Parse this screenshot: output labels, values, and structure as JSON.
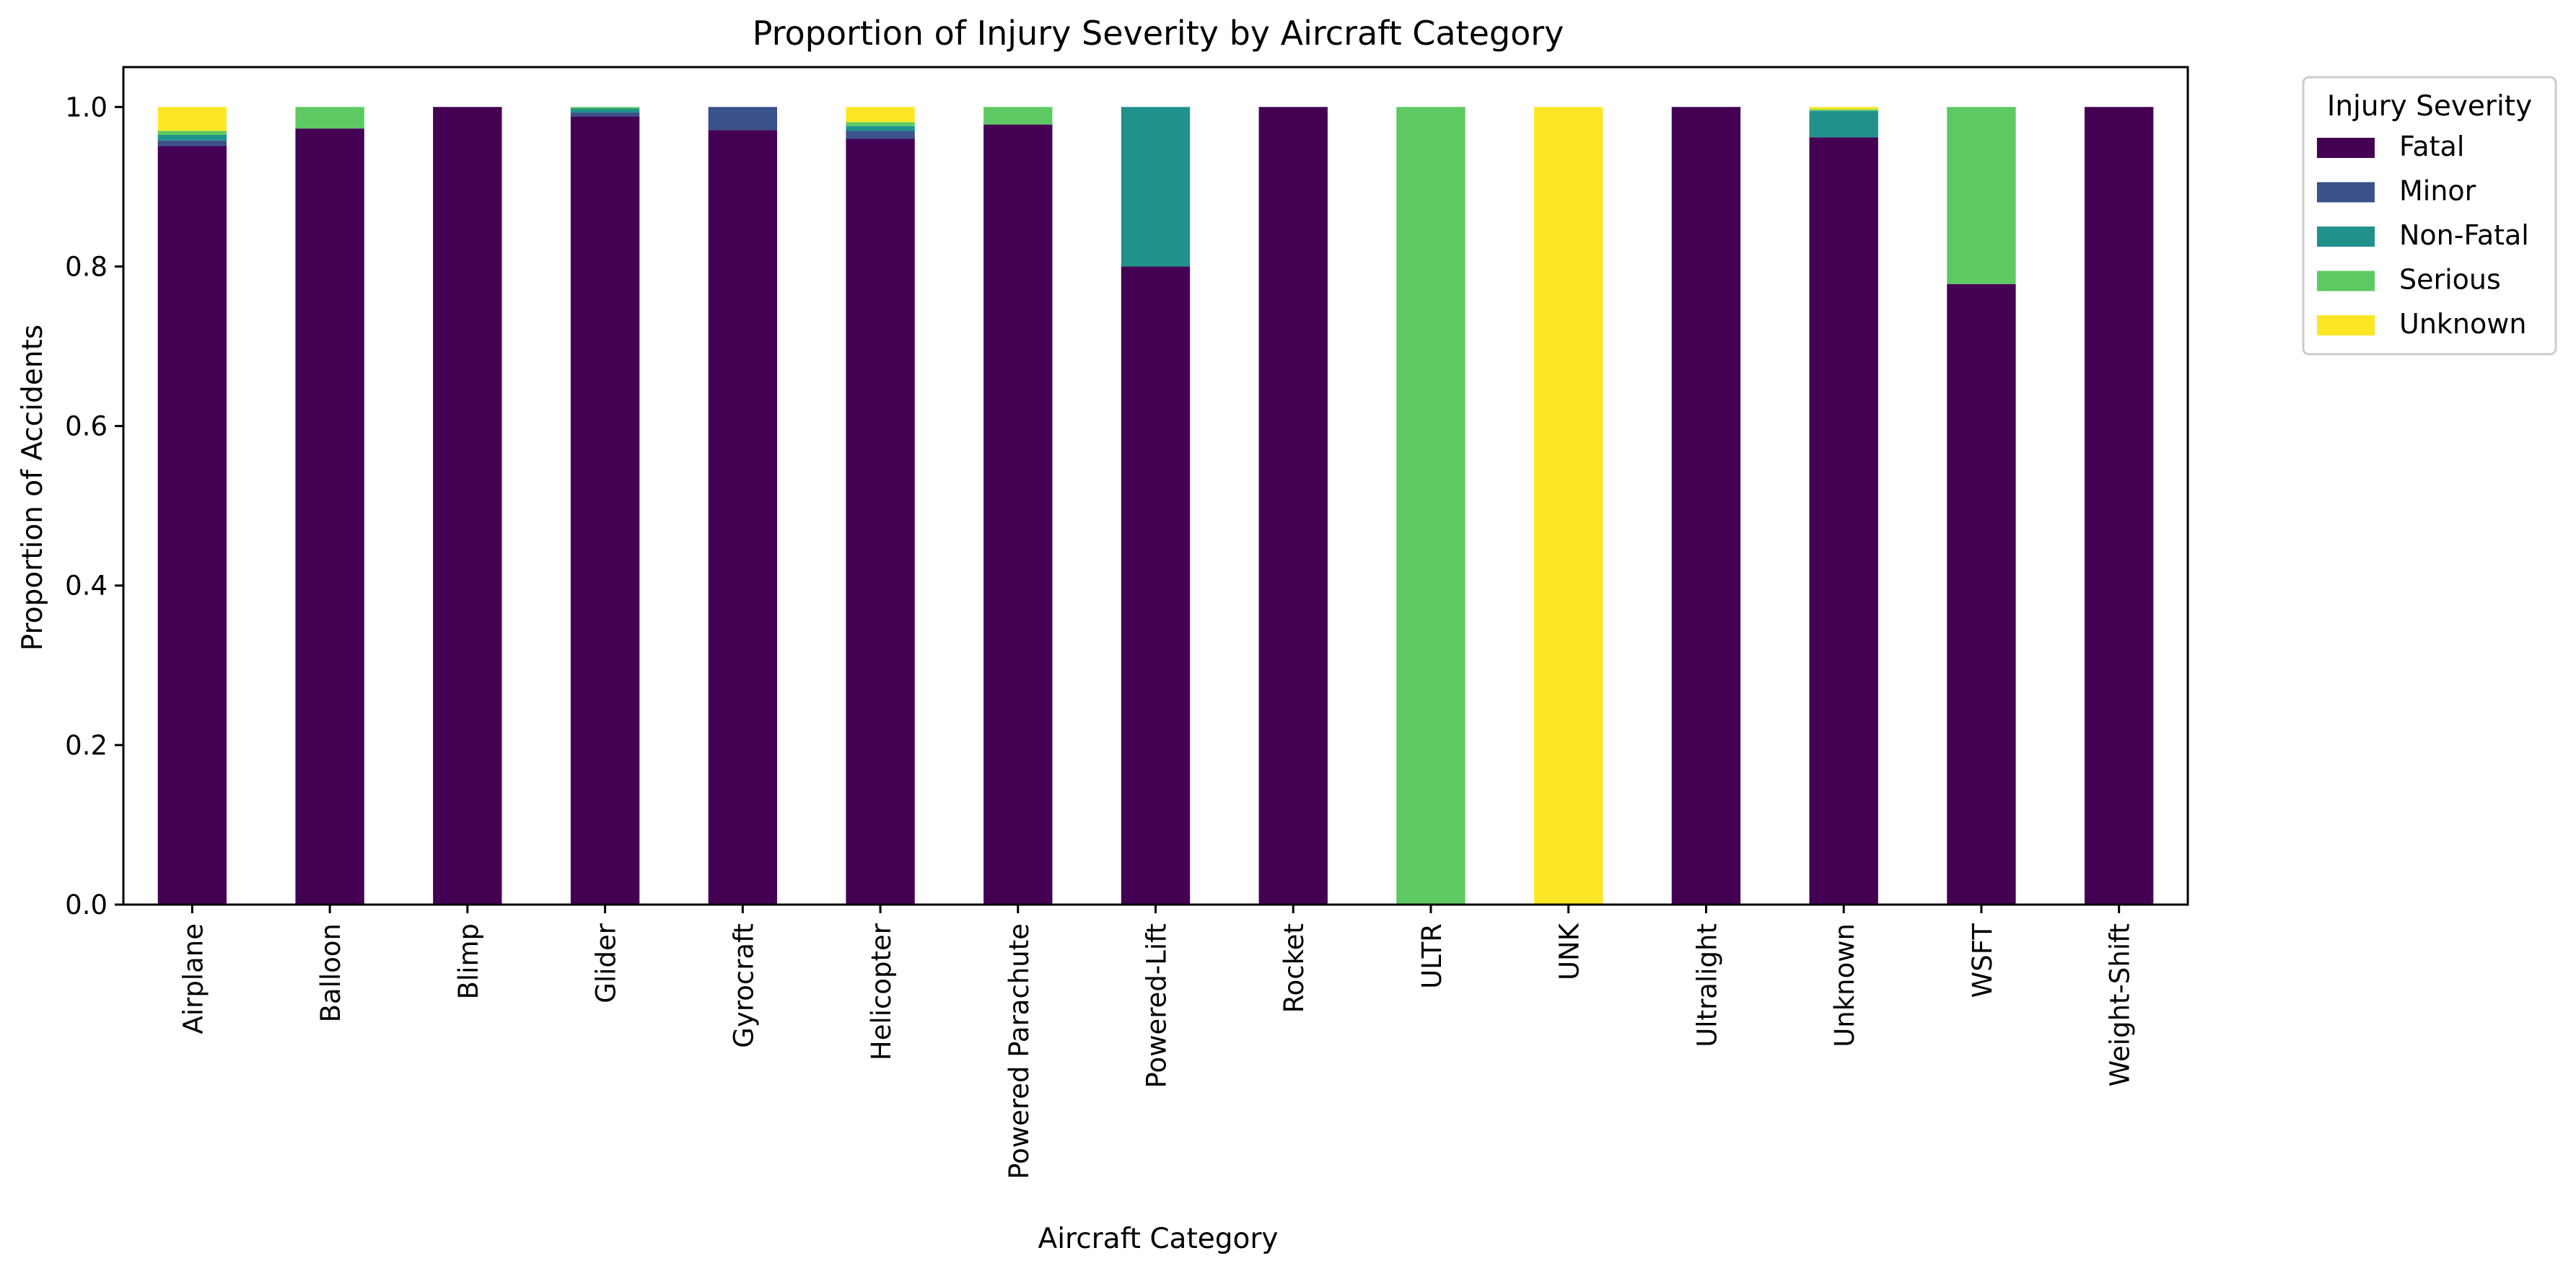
{
  "chart_data": {
    "type": "bar",
    "stacked": true,
    "title": "Proportion of Injury Severity by Aircraft Category",
    "xlabel": "Aircraft Category",
    "ylabel": "Proportion of Accidents",
    "ylim": [
      0,
      1.05
    ],
    "yticks": [
      "0.0",
      "0.2",
      "0.4",
      "0.6",
      "0.8",
      "1.0"
    ],
    "grid": false,
    "legend_title": "Injury Severity",
    "legend_position": "outside-top-right",
    "categories": [
      "Airplane",
      "Balloon",
      "Blimp",
      "Glider",
      "Gyrocraft",
      "Helicopter",
      "Powered Parachute",
      "Powered-Lift",
      "Rocket",
      "ULTR",
      "UNK",
      "Ultralight",
      "Unknown",
      "WSFT",
      "Weight-Shift"
    ],
    "series": [
      {
        "name": "Fatal",
        "color": "#440154",
        "values": [
          0.951,
          0.973,
          1.0,
          0.988,
          0.971,
          0.96,
          0.978,
          0.8,
          1.0,
          0.0,
          0.0,
          1.0,
          0.962,
          0.778,
          1.0
        ]
      },
      {
        "name": "Minor",
        "color": "#3b528b",
        "values": [
          0.007,
          0.0,
          0.0,
          0.005,
          0.029,
          0.01,
          0.0,
          0.0,
          0.0,
          0.0,
          0.0,
          0.0,
          0.0,
          0.0,
          0.0
        ]
      },
      {
        "name": "Non-Fatal",
        "color": "#21918c",
        "values": [
          0.007,
          0.0,
          0.0,
          0.005,
          0.0,
          0.006,
          0.0,
          0.2,
          0.0,
          0.0,
          0.0,
          0.0,
          0.033,
          0.0,
          0.0
        ]
      },
      {
        "name": "Serious",
        "color": "#5ec962",
        "values": [
          0.005,
          0.027,
          0.0,
          0.002,
          0.0,
          0.005,
          0.022,
          0.0,
          0.0,
          1.0,
          0.0,
          0.0,
          0.002,
          0.222,
          0.0
        ]
      },
      {
        "name": "Unknown",
        "color": "#fde725",
        "values": [
          0.03,
          0.0,
          0.0,
          0.0,
          0.0,
          0.019,
          0.0,
          0.0,
          0.0,
          0.0,
          1.0,
          0.0,
          0.003,
          0.0,
          0.0
        ]
      }
    ]
  }
}
